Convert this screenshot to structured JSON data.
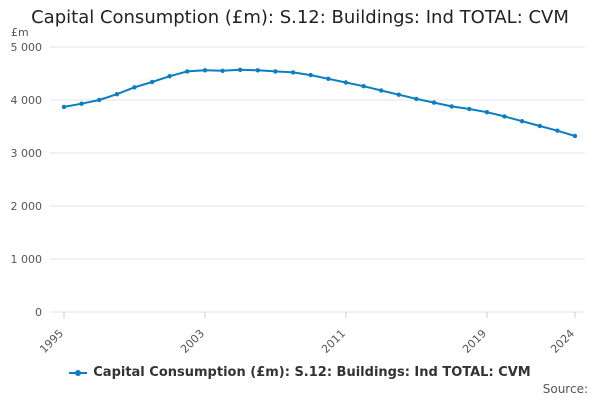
{
  "title": "Capital Consumption (£m): S.12: Buildings: Ind TOTAL: CVM",
  "source_label": "Source:",
  "chart_data": {
    "type": "line",
    "title": "Capital Consumption (£m): S.12: Buildings: Ind TOTAL: CVM",
    "ylabel": "£m",
    "xlabel": "",
    "ylim": [
      0,
      5000
    ],
    "yticks": [
      0,
      1000,
      2000,
      3000,
      4000,
      5000
    ],
    "ytick_labels": [
      "0",
      "1 000",
      "2 000",
      "3 000",
      "4 000",
      "5 000"
    ],
    "xlim": [
      1995,
      2024
    ],
    "xticks": [
      1995,
      2003,
      2011,
      2019,
      2024
    ],
    "xtick_labels": [
      "1995",
      "2003",
      "2011",
      "2019",
      "2024"
    ],
    "grid": true,
    "legend_position": "bottom",
    "color": "#0b7dc2",
    "x": [
      1995,
      1996,
      1997,
      1998,
      1999,
      2000,
      2001,
      2002,
      2003,
      2004,
      2005,
      2006,
      2007,
      2008,
      2009,
      2010,
      2011,
      2012,
      2013,
      2014,
      2015,
      2016,
      2017,
      2018,
      2019,
      2020,
      2021,
      2022,
      2023,
      2024
    ],
    "series": [
      {
        "name": "Capital Consumption (£m): S.12: Buildings: Ind TOTAL: CVM",
        "values": [
          3870,
          3930,
          4000,
          4110,
          4240,
          4340,
          4450,
          4540,
          4560,
          4550,
          4570,
          4560,
          4540,
          4520,
          4470,
          4400,
          4330,
          4260,
          4180,
          4100,
          4020,
          3950,
          3880,
          3830,
          3770,
          3690,
          3600,
          3510,
          3420,
          3320
        ]
      }
    ]
  }
}
